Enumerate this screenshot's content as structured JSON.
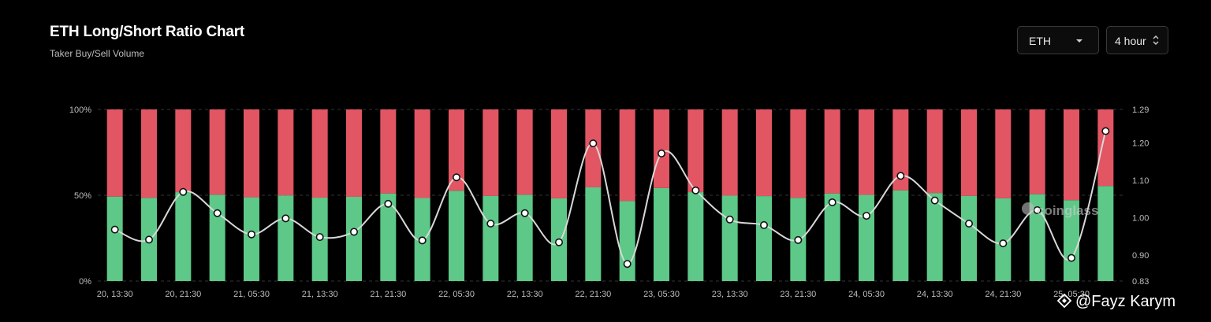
{
  "header": {
    "title": "ETH Long/Short Ratio Chart",
    "subtitle": "Taker Buy/Sell Volume"
  },
  "controls": {
    "symbol": {
      "value": "ETH",
      "icon": "chevron-down-icon"
    },
    "interval": {
      "value": "4 hour",
      "icon": "up-down-arrows-icon"
    }
  },
  "watermarks": {
    "brand": "coinglass",
    "author": "@Fayz Karym"
  },
  "colors": {
    "long": "#5dc887",
    "short": "#e25563",
    "ratio_line": "#d8d8d8",
    "background": "#000000"
  },
  "chart_data": {
    "type": "bar",
    "stacked": true,
    "y_left": {
      "ticks": [
        "0%",
        "50%",
        "100%"
      ],
      "range": [
        0,
        100
      ]
    },
    "y_right": {
      "ticks": [
        "0.83",
        "0.90",
        "1.00",
        "1.10",
        "1.20",
        "1.29"
      ],
      "range": [
        0.83,
        1.29
      ]
    },
    "x_tick_labels": [
      "20, 13:30",
      "20, 21:30",
      "21, 05:30",
      "21, 13:30",
      "21, 21:30",
      "22, 05:30",
      "22, 13:30",
      "22, 21:30",
      "23, 05:30",
      "23, 13:30",
      "23, 21:30",
      "24, 05:30",
      "24, 13:30",
      "24, 21:30",
      "25, 05:30"
    ],
    "grid": true,
    "series": [
      {
        "values": [
          49.2,
          48.5,
          51.8,
          50.3,
          48.8,
          49.9,
          48.6,
          49.1,
          51.0,
          48.4,
          52.6,
          49.6,
          50.3,
          48.2,
          54.6,
          46.6,
          54.2,
          51.8,
          49.8,
          49.5,
          48.5,
          51.0,
          50.2,
          52.8,
          51.3,
          49.6,
          48.2,
          50.6,
          47.1,
          55.4
        ]
      },
      {
        "values": [
          50.8,
          51.5,
          48.2,
          49.7,
          51.2,
          50.1,
          51.4,
          50.9,
          49.0,
          51.6,
          47.4,
          50.4,
          49.7,
          51.8,
          45.4,
          53.4,
          45.8,
          48.2,
          50.2,
          50.5,
          51.5,
          49.0,
          49.8,
          47.2,
          48.7,
          50.4,
          51.8,
          49.4,
          52.9,
          44.6
        ]
      },
      {
        "type": "line",
        "axis": "right",
        "values": [
          0.968,
          0.941,
          1.069,
          1.012,
          0.955,
          0.998,
          0.948,
          0.962,
          1.037,
          0.939,
          1.108,
          0.984,
          1.012,
          0.934,
          1.199,
          0.876,
          1.172,
          1.073,
          0.995,
          0.98,
          0.94,
          1.041,
          1.005,
          1.112,
          1.046,
          0.984,
          0.931,
          1.02,
          0.892,
          1.232
        ]
      }
    ]
  }
}
